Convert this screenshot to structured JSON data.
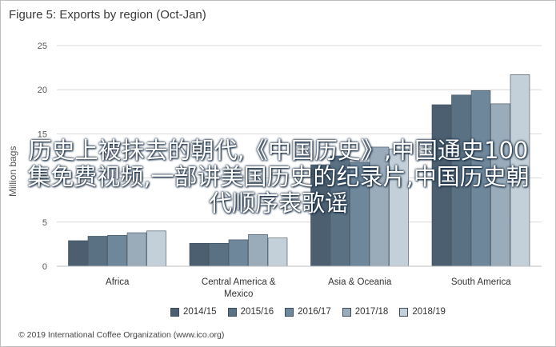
{
  "chart_data": {
    "type": "bar",
    "title": "Figure 5: Exports by region (Oct-Jan)",
    "ylabel": "Million bags",
    "ylim": [
      0,
      25
    ],
    "yticks": [
      0,
      5,
      10,
      15,
      20,
      25
    ],
    "grid": true,
    "legend_position": "bottom",
    "categories": [
      "Africa",
      "Central America & Mexico",
      "Asia & Oceania",
      "South America"
    ],
    "category_lines": [
      [
        "Africa"
      ],
      [
        "Central America &",
        "Mexico"
      ],
      [
        "Asia & Oceania"
      ],
      [
        "South America"
      ]
    ],
    "series": [
      {
        "name": "2014/15",
        "color": "#4b5f70",
        "values": [
          2.9,
          2.6,
          11.5,
          18.3
        ]
      },
      {
        "name": "2015/16",
        "color": "#5a7184",
        "values": [
          3.4,
          2.6,
          12.5,
          19.4
        ]
      },
      {
        "name": "2016/17",
        "color": "#6e879b",
        "values": [
          3.5,
          3.0,
          11.8,
          19.9
        ]
      },
      {
        "name": "2017/18",
        "color": "#9aacba",
        "values": [
          3.8,
          3.6,
          13.5,
          18.4
        ]
      },
      {
        "name": "2018/19",
        "color": "#c4d0d9",
        "values": [
          4.0,
          3.2,
          13.3,
          21.7
        ]
      }
    ]
  },
  "source": "© 2019 International Coffee Organization (www.ico.org)",
  "overlay_text": "历史上被抹去的朝代,《中国历史》,中国通史100集免费视频,一部讲美国历史的纪录片,中国历史朝代顺序表歌谣"
}
